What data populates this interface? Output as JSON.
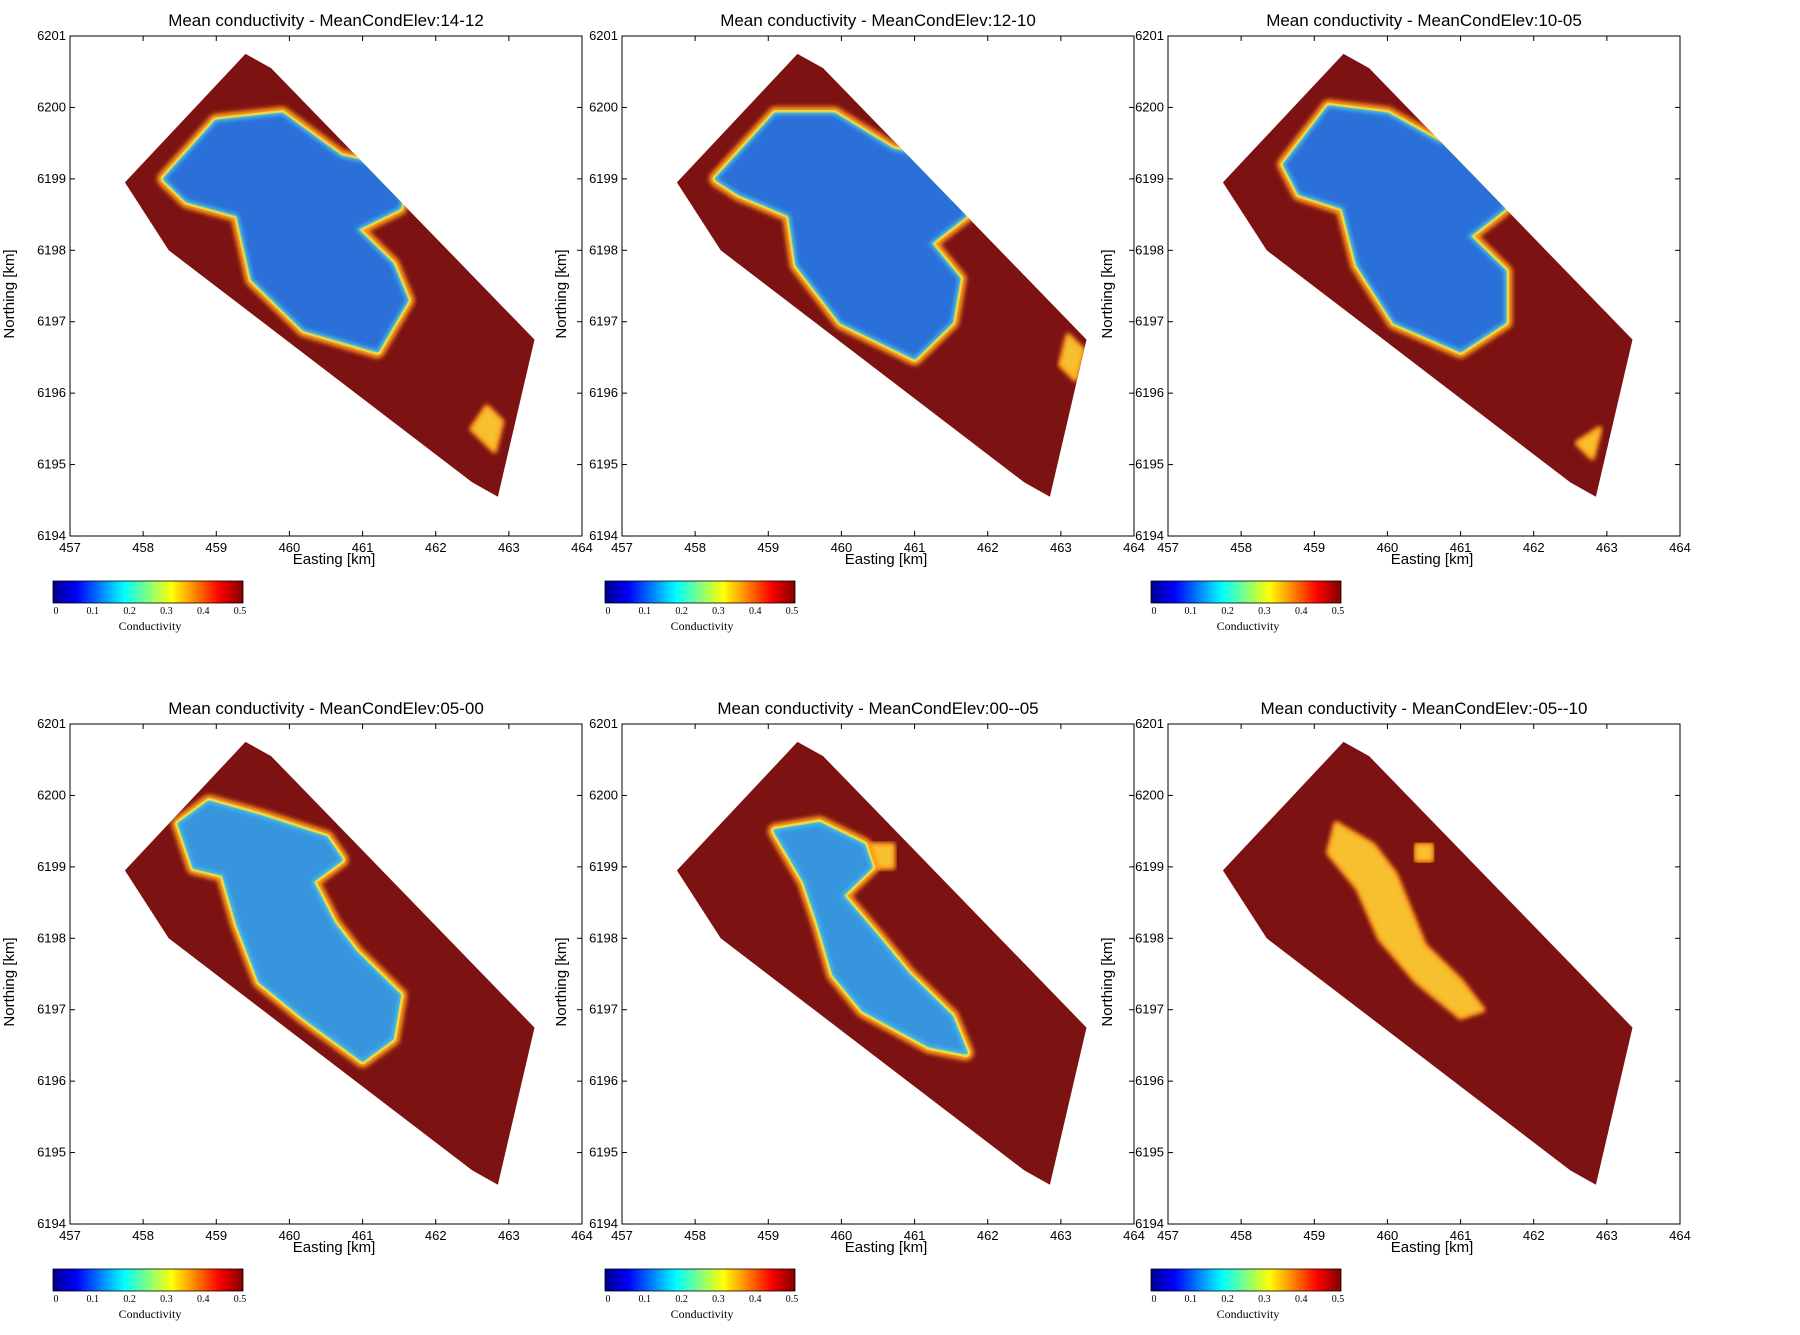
{
  "colormap": [
    "#00008f",
    "#0000ff",
    "#0080ff",
    "#00ffff",
    "#80ff80",
    "#ffff00",
    "#ff8000",
    "#ff0000",
    "#800000"
  ],
  "colors": {
    "high": "#7d1212",
    "mid": "#ff9a1e",
    "low": "#2a6fd8",
    "lowmid": "#48c3e6",
    "edge": "#f0e040"
  },
  "colorbar": {
    "label": "Conductivity",
    "ticks": [
      "0",
      "0.1",
      "0.2",
      "0.3",
      "0.4",
      "0.5"
    ]
  },
  "x_axis": {
    "label": "Easting [km]",
    "ticks": [
      "457",
      "458",
      "459",
      "460",
      "461",
      "462",
      "463",
      "464"
    ]
  },
  "y_axis": {
    "label": "Northing [km]",
    "ticks": [
      "6194",
      "6195",
      "6196",
      "6197",
      "6198",
      "6199",
      "6200",
      "6201"
    ]
  },
  "survey_outline_km": [
    [
      459.4,
      6200.75
    ],
    [
      459.75,
      6200.55
    ],
    [
      463.35,
      6196.75
    ],
    [
      462.85,
      6194.55
    ],
    [
      462.5,
      6194.75
    ],
    [
      458.35,
      6198.0
    ],
    [
      457.75,
      6198.95
    ]
  ],
  "panels": [
    {
      "title": "Mean conductivity - MeanCondElev:14-12",
      "low_zones": [
        [
          [
            458.3,
            6199.0
          ],
          [
            459.0,
            6199.8
          ],
          [
            459.9,
            6199.9
          ],
          [
            460.7,
            6199.3
          ],
          [
            461.6,
            6199.1
          ],
          [
            461.5,
            6198.6
          ],
          [
            460.9,
            6198.3
          ],
          [
            461.4,
            6197.8
          ],
          [
            461.6,
            6197.3
          ],
          [
            461.2,
            6196.6
          ],
          [
            460.2,
            6196.9
          ],
          [
            459.5,
            6197.6
          ],
          [
            459.3,
            6198.5
          ],
          [
            458.6,
            6198.7
          ]
        ]
      ],
      "mid_zones": [
        [
          [
            462.5,
            6195.5
          ],
          [
            462.8,
            6195.2
          ],
          [
            462.9,
            6195.6
          ],
          [
            462.7,
            6195.8
          ]
        ]
      ]
    },
    {
      "title": "Mean conductivity - MeanCondElev:12-10",
      "low_zones": [
        [
          [
            458.3,
            6199.0
          ],
          [
            459.1,
            6199.9
          ],
          [
            459.9,
            6199.9
          ],
          [
            460.7,
            6199.4
          ],
          [
            461.5,
            6199.2
          ],
          [
            461.7,
            6198.5
          ],
          [
            461.2,
            6198.1
          ],
          [
            461.6,
            6197.6
          ],
          [
            461.5,
            6197.0
          ],
          [
            461.0,
            6196.5
          ],
          [
            460.0,
            6197.0
          ],
          [
            459.4,
            6197.8
          ],
          [
            459.3,
            6198.5
          ],
          [
            458.6,
            6198.8
          ]
        ]
      ],
      "mid_zones": [
        [
          [
            463.1,
            6196.8
          ],
          [
            463.3,
            6196.6
          ],
          [
            463.2,
            6196.2
          ],
          [
            463.0,
            6196.4
          ]
        ]
      ]
    },
    {
      "title": "Mean conductivity - MeanCondElev:10-05",
      "low_zones": [
        [
          [
            458.6,
            6199.2
          ],
          [
            459.2,
            6200.0
          ],
          [
            460.0,
            6199.9
          ],
          [
            460.7,
            6199.5
          ],
          [
            461.3,
            6199.4
          ],
          [
            461.6,
            6198.6
          ],
          [
            461.1,
            6198.2
          ],
          [
            461.6,
            6197.7
          ],
          [
            461.6,
            6197.0
          ],
          [
            461.0,
            6196.6
          ],
          [
            460.1,
            6197.0
          ],
          [
            459.6,
            6197.8
          ],
          [
            459.4,
            6198.6
          ],
          [
            458.8,
            6198.8
          ]
        ]
      ],
      "mid_zones": [
        [
          [
            462.6,
            6195.3
          ],
          [
            462.8,
            6195.1
          ],
          [
            462.9,
            6195.5
          ]
        ]
      ]
    },
    {
      "title": "Mean conductivity - MeanCondElev:05-00",
      "low_zones": [
        [
          [
            458.5,
            6199.6
          ],
          [
            458.9,
            6199.9
          ],
          [
            459.6,
            6199.7
          ],
          [
            460.5,
            6199.4
          ],
          [
            460.7,
            6199.1
          ],
          [
            460.3,
            6198.8
          ],
          [
            460.6,
            6198.2
          ],
          [
            460.9,
            6197.8
          ],
          [
            461.5,
            6197.2
          ],
          [
            461.4,
            6196.6
          ],
          [
            461.0,
            6196.3
          ],
          [
            460.2,
            6196.9
          ],
          [
            459.6,
            6197.4
          ],
          [
            459.3,
            6198.2
          ],
          [
            459.1,
            6198.9
          ],
          [
            458.7,
            6199.0
          ]
        ]
      ],
      "mid_zones": []
    },
    {
      "title": "Mean conductivity - MeanCondElev:00--05",
      "low_zones": [
        [
          [
            459.1,
            6199.5
          ],
          [
            459.7,
            6199.6
          ],
          [
            460.3,
            6199.3
          ],
          [
            460.4,
            6199.0
          ],
          [
            460.0,
            6198.6
          ],
          [
            460.5,
            6198.0
          ],
          [
            460.9,
            6197.5
          ],
          [
            461.5,
            6196.9
          ],
          [
            461.7,
            6196.4
          ],
          [
            461.2,
            6196.5
          ],
          [
            460.3,
            6197.0
          ],
          [
            459.9,
            6197.5
          ],
          [
            459.7,
            6198.2
          ],
          [
            459.5,
            6198.8
          ]
        ]
      ],
      "mid_zones": [
        [
          [
            460.4,
            6199.3
          ],
          [
            460.7,
            6199.3
          ],
          [
            460.7,
            6199.0
          ],
          [
            460.4,
            6199.0
          ]
        ]
      ]
    },
    {
      "title": "Mean conductivity - MeanCondElev:-05--10",
      "low_zones": [],
      "mid_zones": [
        [
          [
            459.3,
            6199.6
          ],
          [
            459.8,
            6199.3
          ],
          [
            460.1,
            6198.9
          ],
          [
            460.3,
            6198.4
          ],
          [
            460.5,
            6197.9
          ],
          [
            461.0,
            6197.4
          ],
          [
            461.3,
            6197.0
          ],
          [
            461.0,
            6196.9
          ],
          [
            460.4,
            6197.4
          ],
          [
            459.9,
            6198.0
          ],
          [
            459.6,
            6198.7
          ],
          [
            459.2,
            6199.2
          ]
        ],
        [
          [
            460.4,
            6199.3
          ],
          [
            460.6,
            6199.3
          ],
          [
            460.6,
            6199.1
          ],
          [
            460.4,
            6199.1
          ]
        ]
      ]
    }
  ]
}
